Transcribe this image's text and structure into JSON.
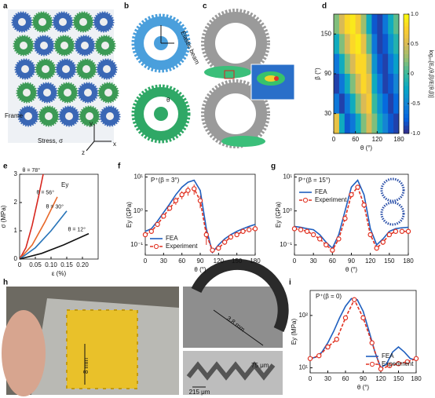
{
  "panels": {
    "a": {
      "letter": "a",
      "frame": "Frame",
      "stress": "Stress, σ",
      "ax_x": "x",
      "ax_y": "y",
      "ax_z": "z"
    },
    "b": {
      "letter": "b",
      "beam": "Elastic beam",
      "theta": "θ"
    },
    "c": {
      "letter": "c"
    },
    "h": {
      "letter": "h",
      "scale_block": "8 mm",
      "scale_gear": "3.8 mm",
      "scale_gap": "215 μm",
      "scale_beam": "75 μm"
    },
    "chart_letters": [
      "d",
      "e",
      "f",
      "g",
      "i"
    ]
  },
  "chart_data": [
    {
      "type": "heatmap",
      "xlabel": "θ (°)",
      "ylabel": "β (°)",
      "colorbar_label": "log₁₀[Eᵧ(θ,β)/E(θ,β)]",
      "colormap": "parula",
      "x": [
        7.5,
        22.5,
        37.5,
        52.5,
        67.5,
        82.5,
        97.5,
        112.5,
        127.5,
        142.5,
        157.5,
        172.5
      ],
      "y": [
        165,
        135,
        105,
        75,
        45,
        15
      ],
      "z": [
        [
          0.2,
          0.5,
          0.8,
          0.9,
          0.7,
          0.3,
          -0.2,
          -0.8,
          -0.9,
          -0.6,
          -0.2,
          0.1
        ],
        [
          -0.2,
          0.2,
          0.5,
          0.8,
          0.9,
          0.6,
          0.1,
          -0.6,
          -0.9,
          -0.8,
          -0.4,
          -0.1
        ],
        [
          -0.6,
          -0.2,
          0.2,
          0.5,
          0.8,
          0.8,
          0.4,
          -0.4,
          -0.8,
          -0.9,
          -0.6,
          -0.3
        ],
        [
          -0.9,
          -0.6,
          -0.2,
          0.2,
          0.5,
          0.8,
          0.6,
          -0.2,
          -0.6,
          -0.9,
          -0.8,
          -0.5
        ],
        [
          -0.6,
          -0.9,
          -0.6,
          -0.2,
          0.2,
          0.5,
          0.7,
          0.0,
          -0.4,
          -0.7,
          -0.9,
          -0.7
        ],
        [
          0.6,
          -0.2,
          -0.8,
          -0.6,
          -0.2,
          0.2,
          0.5,
          0.2,
          -0.2,
          -0.5,
          -0.8,
          -0.9
        ]
      ],
      "xlim": [
        0,
        180
      ],
      "ylim": [
        0,
        180
      ],
      "xticks": [
        0,
        60,
        120,
        180
      ],
      "yticks": [
        30,
        90,
        150
      ],
      "clim": [
        -1,
        1
      ],
      "cticks": [
        {
          "value": -1,
          "label": "-1.0"
        },
        -0.5,
        0,
        0.5,
        {
          "value": 1,
          "label": "1.0"
        }
      ]
    },
    {
      "type": "line",
      "xlabel": "ε (%)",
      "ylabel": "σ (MPa)",
      "annotation": "Ey",
      "label_series": true,
      "xlim": [
        0,
        0.25
      ],
      "ylim": [
        0,
        3
      ],
      "xticks": [
        0,
        0.05,
        {
          "value": 0.1,
          "label": "0.10"
        },
        0.15,
        {
          "value": 0.2,
          "label": "0.20"
        }
      ],
      "yticks": [
        0,
        1,
        2,
        3
      ],
      "series": [
        {
          "name": "θ = 78°",
          "color": "#d7261e",
          "x": [
            0,
            0.02,
            0.04,
            0.06,
            0.075
          ],
          "values": [
            0,
            0.4,
            1.2,
            2.2,
            3.0
          ]
        },
        {
          "name": "θ = 56°",
          "color": "#e8692a",
          "x": [
            0,
            0.04,
            0.08,
            0.12
          ],
          "values": [
            0,
            0.5,
            1.3,
            2.2
          ]
        },
        {
          "name": "θ = 30°",
          "color": "#2673b8",
          "x": [
            0,
            0.05,
            0.1,
            0.15
          ],
          "values": [
            0,
            0.4,
            1.0,
            1.7
          ]
        },
        {
          "name": "θ = 12°",
          "color": "#111111",
          "x": [
            0,
            0.07,
            0.14,
            0.22
          ],
          "values": [
            0,
            0.2,
            0.5,
            0.9
          ]
        }
      ]
    },
    {
      "type": "line",
      "xlabel": "θ (°)",
      "ylabel": "Ey (GPa)",
      "annotation": "P⁺(β = 3°)",
      "log_y": true,
      "legend": "lower left",
      "xlim": [
        0,
        180
      ],
      "ylim": [
        0.05,
        12
      ],
      "xticks": [
        0,
        30,
        60,
        90,
        120,
        150,
        180
      ],
      "yticks": [
        {
          "value": 0.1,
          "label": "10⁻¹"
        },
        {
          "value": 1,
          "label": "10⁰"
        },
        {
          "value": 10,
          "label": "10¹"
        }
      ],
      "series": [
        {
          "name": "FEA",
          "color": "#1f5fbf",
          "x": [
            0,
            10,
            20,
            30,
            40,
            50,
            60,
            70,
            80,
            90,
            100,
            110,
            120,
            130,
            140,
            150,
            160,
            170,
            180
          ],
          "values": [
            0.25,
            0.3,
            0.5,
            0.9,
            1.6,
            3,
            5,
            7,
            8,
            4,
            0.3,
            0.06,
            0.1,
            0.15,
            0.2,
            0.25,
            0.3,
            0.35,
            0.4
          ]
        },
        {
          "name": "Experiment",
          "color": "#e03020",
          "dashed": true,
          "markers": true,
          "x": [
            0,
            10,
            20,
            30,
            40,
            50,
            60,
            70,
            80,
            90,
            100,
            110,
            120,
            130,
            140,
            150,
            160,
            170,
            180
          ],
          "values": [
            0.2,
            0.25,
            0.4,
            0.7,
            1.2,
            2,
            3,
            4,
            4.5,
            2,
            0.2,
            0.07,
            0.08,
            0.12,
            0.17,
            0.2,
            0.25,
            0.28,
            0.3
          ],
          "errors": [
            0.03,
            0.04,
            0.06,
            0.1,
            0.2,
            0.5,
            0.8,
            1.2,
            1.5,
            0.8,
            0.1,
            0.01,
            0.01,
            0.02,
            0.02,
            0.03,
            0.03,
            0.03,
            0.04
          ]
        }
      ]
    },
    {
      "type": "line",
      "xlabel": "θ (°)",
      "ylabel": "Ey (GPa)",
      "annotation": "P⁺(β = 15°)",
      "log_y": true,
      "legend": "upper left",
      "xlim": [
        0,
        180
      ],
      "ylim": [
        0.05,
        12
      ],
      "xticks": [
        0,
        30,
        60,
        90,
        120,
        150,
        180
      ],
      "yticks": [
        {
          "value": 0.1,
          "label": "10⁻¹"
        },
        {
          "value": 1,
          "label": "10⁰"
        },
        {
          "value": 10,
          "label": "10¹"
        }
      ],
      "series": [
        {
          "name": "FEA",
          "color": "#1f5fbf",
          "x": [
            0,
            10,
            20,
            30,
            40,
            50,
            60,
            70,
            80,
            90,
            100,
            110,
            120,
            130,
            140,
            150,
            160,
            170,
            180
          ],
          "values": [
            0.35,
            0.33,
            0.3,
            0.28,
            0.2,
            0.12,
            0.08,
            0.2,
            1,
            5,
            8,
            3,
            0.3,
            0.1,
            0.15,
            0.25,
            0.3,
            0.32,
            0.33
          ]
        },
        {
          "name": "Experiment",
          "color": "#e03020",
          "dashed": true,
          "markers": true,
          "x": [
            0,
            10,
            20,
            30,
            40,
            50,
            60,
            70,
            80,
            90,
            100,
            110,
            120,
            130,
            140,
            150,
            160,
            170,
            180
          ],
          "values": [
            0.3,
            0.28,
            0.25,
            0.2,
            0.15,
            0.1,
            0.07,
            0.15,
            0.6,
            3,
            5,
            1.5,
            0.2,
            0.08,
            0.12,
            0.2,
            0.25,
            0.25,
            0.25
          ],
          "errors": [
            0.03,
            0.03,
            0.03,
            0.02,
            0.02,
            0.01,
            0.01,
            0.02,
            0.1,
            0.5,
            0.8,
            0.3,
            0.03,
            0.01,
            0.02,
            0.02,
            0.03,
            0.03,
            0.03
          ]
        }
      ]
    },
    {
      "type": "line",
      "xlabel": "θ (°)",
      "ylabel": "Ey (MPa)",
      "annotation": "P⁺(β = 0)",
      "log_y": true,
      "legend": "lower right",
      "xlim": [
        0,
        180
      ],
      "ylim": [
        8,
        300
      ],
      "xticks": [
        0,
        30,
        60,
        90,
        120,
        150,
        180
      ],
      "yticks": [
        {
          "value": 10,
          "label": "10¹"
        },
        {
          "value": 100,
          "label": "10²"
        }
      ],
      "series": [
        {
          "name": "FEA",
          "color": "#1f5fbf",
          "x": [
            0,
            10,
            20,
            30,
            40,
            50,
            60,
            70,
            80,
            90,
            100,
            110,
            120,
            130,
            140,
            150,
            160,
            170,
            180
          ],
          "values": [
            15,
            16,
            20,
            30,
            50,
            90,
            150,
            210,
            200,
            120,
            50,
            20,
            10,
            12,
            20,
            25,
            20,
            15,
            14
          ]
        },
        {
          "name": "Experiment",
          "color": "#e03020",
          "dashed": true,
          "markers": true,
          "x": [
            0,
            15,
            30,
            45,
            60,
            75,
            90,
            105,
            120,
            135,
            150,
            165,
            180
          ],
          "values": [
            15,
            17,
            25,
            35,
            90,
            200,
            90,
            30,
            9.5,
            11,
            12,
            13,
            15
          ],
          "errors": [
            1,
            1,
            2,
            3,
            8,
            15,
            8,
            3,
            1,
            1,
            1,
            1,
            1
          ]
        }
      ]
    }
  ]
}
